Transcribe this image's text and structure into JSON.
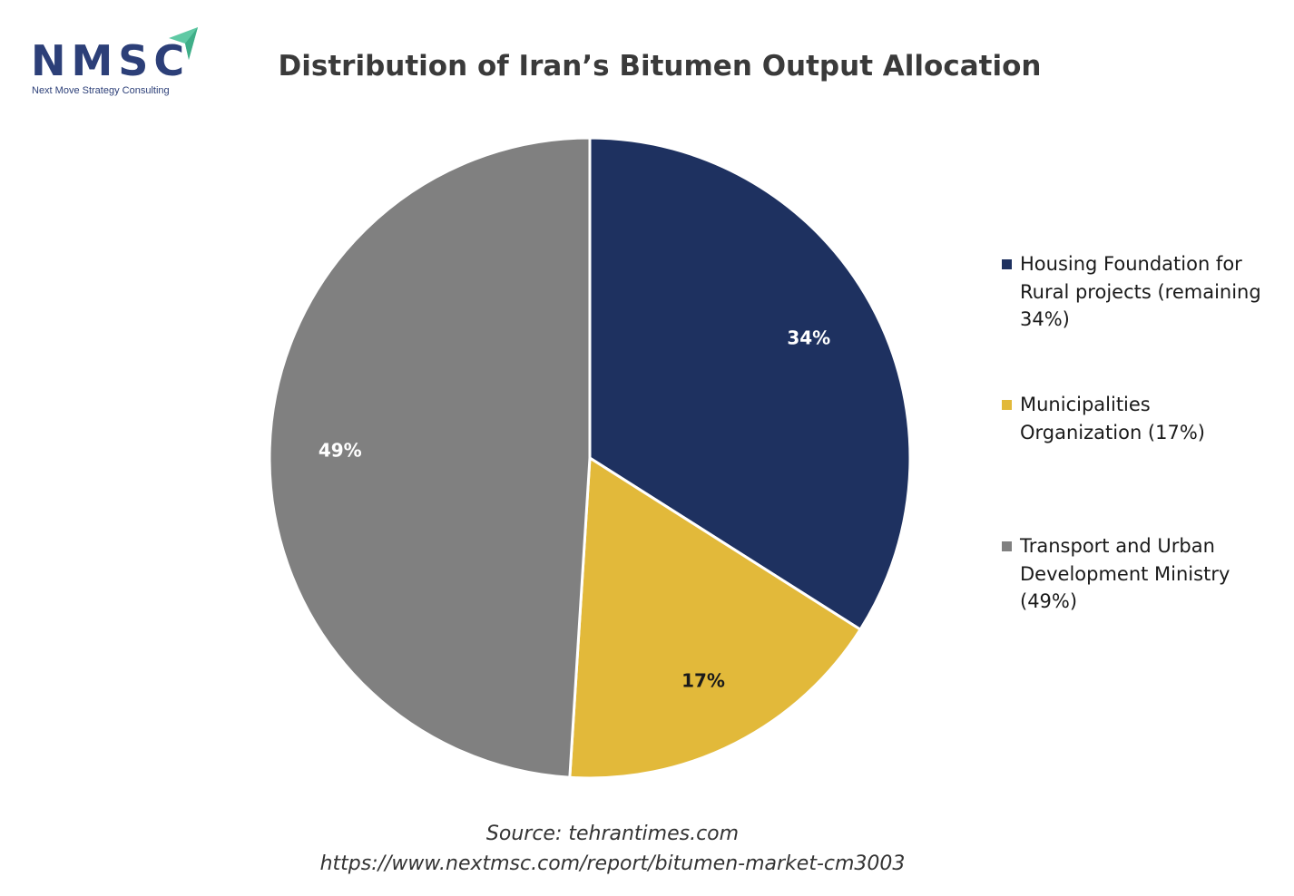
{
  "logo": {
    "name": "NMSC",
    "tagline": "Next Move Strategy Consulting",
    "brand_color": "#2c3f78",
    "accent_color": "#5fc9a4"
  },
  "chart_data": {
    "type": "pie",
    "title": "Distribution of Iran’s Bitumen Output Allocation",
    "start_angle_deg": 0,
    "direction": "clockwise",
    "slices": [
      {
        "label": "Housing Foundation for Rural projects (remaining 34%)",
        "value": 34,
        "display": "34%",
        "color": "#1e3160",
        "label_color": "#ffffff"
      },
      {
        "label": "Municipalities Organization (17%)",
        "value": 17,
        "display": "17%",
        "color": "#e2b93a",
        "label_color": "#1a1a1a"
      },
      {
        "label": "Transport and Urban Development Ministry (49%)",
        "value": 49,
        "display": "49%",
        "color": "#808080",
        "label_color": "#ffffff"
      }
    ],
    "legend_position": "right"
  },
  "footer": {
    "source": "Source: tehrantimes.com",
    "url": "https://www.nextmsc.com/report/bitumen-market-cm3003"
  }
}
